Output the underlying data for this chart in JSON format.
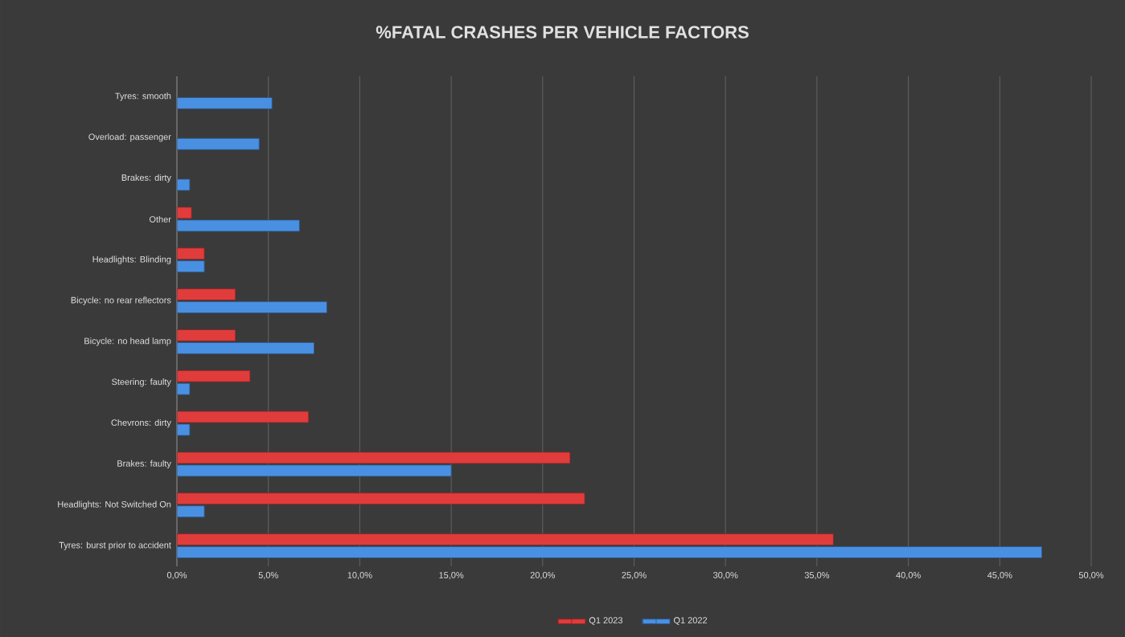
{
  "chart_data": {
    "type": "bar",
    "orientation": "horizontal",
    "title": "%FATAL CRASHES PER VEHICLE FACTORS",
    "categories": [
      "Tyres: smooth",
      "Overload: passenger",
      "Brakes: dirty",
      "Other",
      "Headlights: Blinding",
      "Bicycle: no rear reflectors",
      "Bicycle:  no head lamp",
      "Steering: faulty",
      "Chevrons: dirty",
      "Brakes: faulty",
      "Headlights: Not Switched On",
      "Tyres: burst prior to accident"
    ],
    "series": [
      {
        "name": "Q1 2023",
        "color": "#e03c3c",
        "values": [
          null,
          null,
          null,
          0.8,
          1.5,
          3.2,
          3.2,
          4.0,
          7.2,
          21.5,
          22.3,
          35.9
        ]
      },
      {
        "name": "Q1 2022",
        "color": "#4a90e2",
        "values": [
          5.2,
          4.5,
          0.7,
          6.7,
          1.5,
          8.2,
          7.5,
          0.7,
          0.7,
          15.0,
          1.5,
          47.3
        ]
      }
    ],
    "xlim": [
      0,
      50
    ],
    "xticks": [
      {
        "value": 0,
        "label": "0,0%"
      },
      {
        "value": 5,
        "label": "5,0%"
      },
      {
        "value": 10,
        "label": "10,0%"
      },
      {
        "value": 15,
        "label": "15,0%"
      },
      {
        "value": 20,
        "label": "20,0%"
      },
      {
        "value": 25,
        "label": "25,0%"
      },
      {
        "value": 30,
        "label": "30,0%"
      },
      {
        "value": 35,
        "label": "35,0%"
      },
      {
        "value": 40,
        "label": "40,0%"
      },
      {
        "value": 45,
        "label": "45,0%"
      },
      {
        "value": 50,
        "label": "50,0%"
      }
    ],
    "grid": "x",
    "legend": "bottom"
  }
}
